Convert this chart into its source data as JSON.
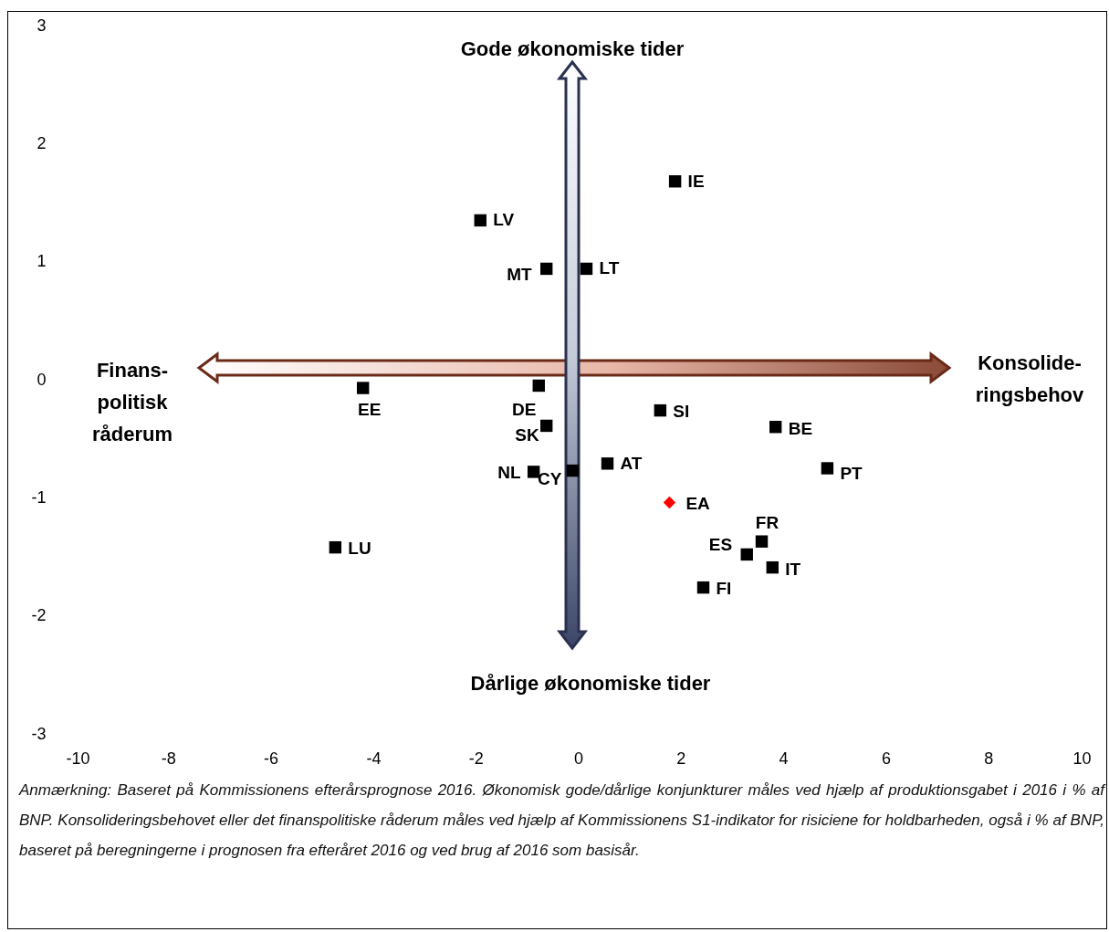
{
  "chart_data": {
    "type": "scatter",
    "marker": "square",
    "grid": false,
    "legend": false,
    "xlim": [
      -10,
      10
    ],
    "xticks": [
      -10,
      -8,
      -6,
      -4,
      -2,
      0,
      2,
      4,
      6,
      8,
      10
    ],
    "ylim": [
      -3,
      3
    ],
    "yticks": [
      -3,
      -2,
      -1,
      0,
      1,
      2,
      3
    ],
    "series": [
      {
        "name": "IE",
        "color": "#000000",
        "x": [
          1.89
        ],
        "values": [
          1.68
        ]
      },
      {
        "name": "LV",
        "color": "#000000",
        "x": [
          -1.91
        ],
        "values": [
          1.35
        ]
      },
      {
        "name": "MT",
        "color": "#000000",
        "x": [
          -0.62
        ],
        "values": [
          0.94
        ]
      },
      {
        "name": "LT",
        "color": "#000000",
        "x": [
          0.16
        ],
        "values": [
          0.94
        ]
      },
      {
        "name": "EE",
        "color": "#000000",
        "x": [
          -4.2
        ],
        "values": [
          -0.07
        ]
      },
      {
        "name": "DE",
        "color": "#000000",
        "x": [
          -0.77
        ],
        "values": [
          -0.05
        ]
      },
      {
        "name": "SI",
        "color": "#000000",
        "x": [
          1.6
        ],
        "values": [
          -0.26
        ]
      },
      {
        "name": "SK",
        "color": "#000000",
        "x": [
          -0.62
        ],
        "values": [
          -0.39
        ]
      },
      {
        "name": "BE",
        "color": "#000000",
        "x": [
          3.85
        ],
        "values": [
          -0.4
        ]
      },
      {
        "name": "AT",
        "color": "#000000",
        "x": [
          0.57
        ],
        "values": [
          -0.71
        ]
      },
      {
        "name": "PT",
        "color": "#000000",
        "x": [
          4.86
        ],
        "values": [
          -0.75
        ]
      },
      {
        "name": "NL",
        "color": "#000000",
        "x": [
          -0.87
        ],
        "values": [
          -0.78
        ]
      },
      {
        "name": "CY",
        "color": "#000000",
        "x": [
          -0.11
        ],
        "values": [
          -0.77
        ]
      },
      {
        "name": "EA",
        "color": "#ff0000",
        "marker": "diamond",
        "x": [
          1.78
        ],
        "values": [
          -1.04
        ]
      },
      {
        "name": "FR",
        "color": "#000000",
        "x": [
          3.58
        ],
        "values": [
          -1.37
        ]
      },
      {
        "name": "ES",
        "color": "#000000",
        "x": [
          3.29
        ],
        "values": [
          -1.48
        ]
      },
      {
        "name": "IT",
        "color": "#000000",
        "x": [
          3.79
        ],
        "values": [
          -1.59
        ]
      },
      {
        "name": "FI",
        "color": "#000000",
        "x": [
          2.44
        ],
        "values": [
          -1.76
        ]
      },
      {
        "name": "LU",
        "color": "#000000",
        "x": [
          -4.74
        ],
        "values": [
          -1.42
        ]
      }
    ],
    "annotations": [
      "Gode økonomiske tider",
      "Dårlige økonomiske tider",
      "Finans-\npolitisk\nråderum",
      "Konsolide-\nringsbehov",
      "Anmærkning: Baseret på Kommissionens efterårsprognose 2016. Økonomisk gode/dårlige konjunkturer måles ved hjælp af produktionsgabet i 2016 i % af BNP. Konsolideringsbehovet eller det finanspolitiske råderum måles ved hjælp af Kommissionens S1-indikator for risiciene for holdbarheden, også i % af BNP, baseret på beregningerne i prognosen fra efteråret 2016 og ved brug af 2016 som basisår."
    ]
  }
}
